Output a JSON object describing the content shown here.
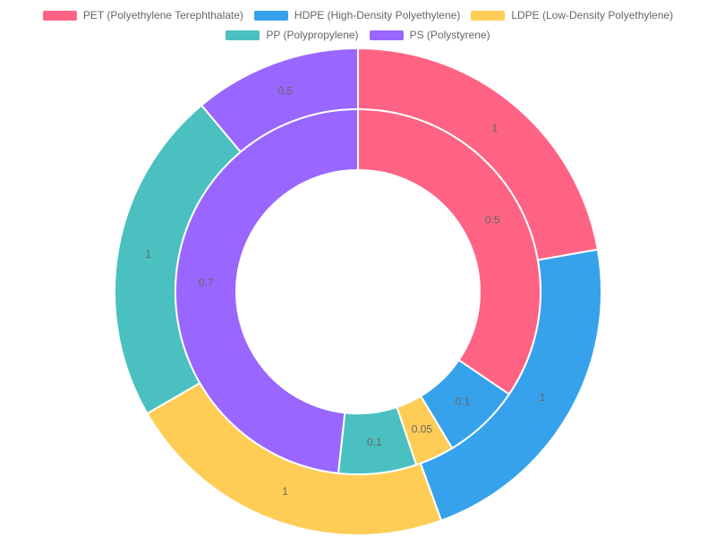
{
  "chart_data": {
    "type": "doughnut",
    "legend_position": "top",
    "categories": [
      "PET (Polyethylene Terephthalate)",
      "HDPE (High-Density Polyethylene)",
      "LDPE (Low-Density Polyethylene)",
      "PP (Polypropylene)",
      "PS (Polystyrene)"
    ],
    "colors": [
      "#ff6384",
      "#36a2eb",
      "#ffcd56",
      "#4bc0c0",
      "#9966ff"
    ],
    "series": [
      {
        "ring": "outer",
        "values": [
          1,
          1,
          1,
          1,
          0.5
        ]
      },
      {
        "ring": "inner",
        "values": [
          0.5,
          0.1,
          0.05,
          0.1,
          0.7
        ]
      }
    ]
  }
}
